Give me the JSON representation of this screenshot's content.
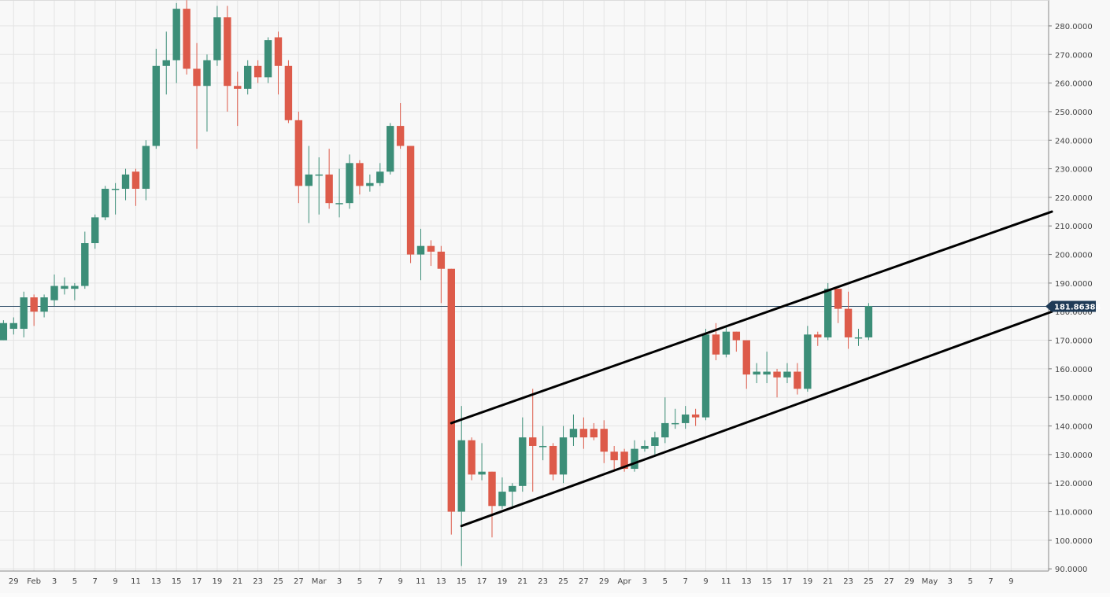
{
  "chart_data": {
    "type": "candlestick",
    "title": "",
    "xlabel": "",
    "ylabel": "",
    "ylim": [
      90,
      290
    ],
    "y_ticks": [
      "90.0000",
      "100.0000",
      "110.0000",
      "120.0000",
      "130.0000",
      "140.0000",
      "150.0000",
      "160.0000",
      "170.0000",
      "180.0000",
      "190.0000",
      "200.0000",
      "210.0000",
      "220.0000",
      "230.0000",
      "240.0000",
      "250.0000",
      "260.0000",
      "270.0000",
      "280.0000"
    ],
    "x_ticks": [
      "29",
      "Feb",
      "3",
      "5",
      "7",
      "9",
      "11",
      "13",
      "15",
      "17",
      "19",
      "21",
      "23",
      "25",
      "27",
      "Mar",
      "3",
      "5",
      "7",
      "9",
      "11",
      "13",
      "15",
      "17",
      "19",
      "21",
      "23",
      "25",
      "27",
      "29",
      "Apr",
      "3",
      "5",
      "7",
      "9",
      "11",
      "13",
      "15",
      "17",
      "19",
      "21",
      "23",
      "25",
      "27",
      "29",
      "May",
      "3",
      "5",
      "7",
      "9"
    ],
    "last_price_label": "181.86384",
    "last_price": 181.86,
    "colors": {
      "up": "#3c8e78",
      "down": "#dd5b4a",
      "grid": "#e4e4e4",
      "price_line": "#2b4a66",
      "price_badge": "#1f3b57",
      "trendline": "#000000"
    },
    "candles": [
      {
        "date": "2020-01-28",
        "open": 170,
        "high": 177,
        "low": 170,
        "close": 176
      },
      {
        "date": "2020-01-29",
        "open": 174,
        "high": 178,
        "low": 172,
        "close": 176
      },
      {
        "date": "2020-01-30",
        "open": 174,
        "high": 187,
        "low": 171,
        "close": 185
      },
      {
        "date": "2020-01-31",
        "open": 185,
        "high": 186,
        "low": 175,
        "close": 180
      },
      {
        "date": "2020-02-01",
        "open": 180,
        "high": 186,
        "low": 178,
        "close": 185
      },
      {
        "date": "2020-02-02",
        "open": 184,
        "high": 193,
        "low": 182,
        "close": 189
      },
      {
        "date": "2020-02-03",
        "open": 188,
        "high": 192,
        "low": 186,
        "close": 189
      },
      {
        "date": "2020-02-04",
        "open": 188,
        "high": 190,
        "low": 184,
        "close": 189
      },
      {
        "date": "2020-02-05",
        "open": 189,
        "high": 208,
        "low": 188,
        "close": 204
      },
      {
        "date": "2020-02-06",
        "open": 204,
        "high": 214,
        "low": 202,
        "close": 213
      },
      {
        "date": "2020-02-07",
        "open": 213,
        "high": 224,
        "low": 212,
        "close": 223
      },
      {
        "date": "2020-02-08",
        "open": 223,
        "high": 225,
        "low": 214,
        "close": 223
      },
      {
        "date": "2020-02-09",
        "open": 223,
        "high": 230,
        "low": 219,
        "close": 228
      },
      {
        "date": "2020-02-10",
        "open": 229,
        "high": 230,
        "low": 217,
        "close": 223
      },
      {
        "date": "2020-02-11",
        "open": 223,
        "high": 240,
        "low": 219,
        "close": 238
      },
      {
        "date": "2020-02-12",
        "open": 238,
        "high": 272,
        "low": 237,
        "close": 266
      },
      {
        "date": "2020-02-13",
        "open": 266,
        "high": 278,
        "low": 256,
        "close": 268
      },
      {
        "date": "2020-02-14",
        "open": 268,
        "high": 288,
        "low": 260,
        "close": 286
      },
      {
        "date": "2020-02-15",
        "open": 286,
        "high": 289,
        "low": 263,
        "close": 265
      },
      {
        "date": "2020-02-16",
        "open": 265,
        "high": 274,
        "low": 237,
        "close": 259
      },
      {
        "date": "2020-02-17",
        "open": 259,
        "high": 270,
        "low": 243,
        "close": 268
      },
      {
        "date": "2020-02-18",
        "open": 268,
        "high": 287,
        "low": 266,
        "close": 283
      },
      {
        "date": "2020-02-19",
        "open": 283,
        "high": 287,
        "low": 250,
        "close": 259
      },
      {
        "date": "2020-02-20",
        "open": 259,
        "high": 264,
        "low": 245,
        "close": 258
      },
      {
        "date": "2020-02-21",
        "open": 258,
        "high": 268,
        "low": 256,
        "close": 266
      },
      {
        "date": "2020-02-22",
        "open": 266,
        "high": 268,
        "low": 260,
        "close": 262
      },
      {
        "date": "2020-02-23",
        "open": 262,
        "high": 276,
        "low": 260,
        "close": 275
      },
      {
        "date": "2020-02-24",
        "open": 276,
        "high": 278,
        "low": 256,
        "close": 266
      },
      {
        "date": "2020-02-25",
        "open": 266,
        "high": 268,
        "low": 246,
        "close": 247
      },
      {
        "date": "2020-02-26",
        "open": 247,
        "high": 250,
        "low": 218,
        "close": 224
      },
      {
        "date": "2020-02-27",
        "open": 224,
        "high": 238,
        "low": 211,
        "close": 228
      },
      {
        "date": "2020-02-28",
        "open": 228,
        "high": 234,
        "low": 214,
        "close": 228
      },
      {
        "date": "2020-02-29",
        "open": 228,
        "high": 237,
        "low": 216,
        "close": 218
      },
      {
        "date": "2020-03-01",
        "open": 218,
        "high": 230,
        "low": 213,
        "close": 218
      },
      {
        "date": "2020-03-02",
        "open": 218,
        "high": 235,
        "low": 216,
        "close": 232
      },
      {
        "date": "2020-03-03",
        "open": 232,
        "high": 233,
        "low": 221,
        "close": 224
      },
      {
        "date": "2020-03-04",
        "open": 224,
        "high": 228,
        "low": 222,
        "close": 225
      },
      {
        "date": "2020-03-05",
        "open": 225,
        "high": 232,
        "low": 224,
        "close": 229
      },
      {
        "date": "2020-03-06",
        "open": 229,
        "high": 246,
        "low": 228,
        "close": 245
      },
      {
        "date": "2020-03-07",
        "open": 245,
        "high": 253,
        "low": 237,
        "close": 238
      },
      {
        "date": "2020-03-08",
        "open": 238,
        "high": 238,
        "low": 197,
        "close": 200
      },
      {
        "date": "2020-03-09",
        "open": 200,
        "high": 209,
        "low": 191,
        "close": 203
      },
      {
        "date": "2020-03-10",
        "open": 203,
        "high": 205,
        "low": 196,
        "close": 201
      },
      {
        "date": "2020-03-11",
        "open": 201,
        "high": 203,
        "low": 183,
        "close": 195
      },
      {
        "date": "2020-03-12",
        "open": 195,
        "high": 195,
        "low": 102,
        "close": 110
      },
      {
        "date": "2020-03-13",
        "open": 110,
        "high": 147,
        "low": 91,
        "close": 135
      },
      {
        "date": "2020-03-14",
        "open": 135,
        "high": 136,
        "low": 121,
        "close": 123
      },
      {
        "date": "2020-03-15",
        "open": 123,
        "high": 134,
        "low": 121,
        "close": 124
      },
      {
        "date": "2020-03-16",
        "open": 124,
        "high": 124,
        "low": 101,
        "close": 112
      },
      {
        "date": "2020-03-17",
        "open": 112,
        "high": 122,
        "low": 111,
        "close": 117
      },
      {
        "date": "2020-03-18",
        "open": 117,
        "high": 120,
        "low": 111,
        "close": 119
      },
      {
        "date": "2020-03-19",
        "open": 119,
        "high": 143,
        "low": 117,
        "close": 136
      },
      {
        "date": "2020-03-20",
        "open": 136,
        "high": 153,
        "low": 117,
        "close": 133
      },
      {
        "date": "2020-03-21",
        "open": 133,
        "high": 140,
        "low": 128,
        "close": 133
      },
      {
        "date": "2020-03-22",
        "open": 133,
        "high": 134,
        "low": 121,
        "close": 123
      },
      {
        "date": "2020-03-23",
        "open": 123,
        "high": 140,
        "low": 120,
        "close": 136
      },
      {
        "date": "2020-03-24",
        "open": 136,
        "high": 144,
        "low": 133,
        "close": 139
      },
      {
        "date": "2020-03-25",
        "open": 139,
        "high": 143,
        "low": 132,
        "close": 136
      },
      {
        "date": "2020-03-26",
        "open": 139,
        "high": 141,
        "low": 135,
        "close": 136
      },
      {
        "date": "2020-03-27",
        "open": 139,
        "high": 142,
        "low": 127,
        "close": 131
      },
      {
        "date": "2020-03-28",
        "open": 131,
        "high": 133,
        "low": 124,
        "close": 128
      },
      {
        "date": "2020-03-29",
        "open": 131,
        "high": 132,
        "low": 124,
        "close": 125
      },
      {
        "date": "2020-03-30",
        "open": 125,
        "high": 135,
        "low": 124,
        "close": 132
      },
      {
        "date": "2020-03-31",
        "open": 132,
        "high": 135,
        "low": 131,
        "close": 133
      },
      {
        "date": "2020-04-01",
        "open": 133,
        "high": 138,
        "low": 130,
        "close": 136
      },
      {
        "date": "2020-04-02",
        "open": 136,
        "high": 150,
        "low": 134,
        "close": 141
      },
      {
        "date": "2020-04-03",
        "open": 141,
        "high": 146,
        "low": 139,
        "close": 141
      },
      {
        "date": "2020-04-04",
        "open": 141,
        "high": 147,
        "low": 139,
        "close": 144
      },
      {
        "date": "2020-04-05",
        "open": 144,
        "high": 146,
        "low": 140,
        "close": 143
      },
      {
        "date": "2020-04-06",
        "open": 143,
        "high": 174,
        "low": 142,
        "close": 172
      },
      {
        "date": "2020-04-07",
        "open": 172,
        "high": 176,
        "low": 163,
        "close": 165
      },
      {
        "date": "2020-04-08",
        "open": 165,
        "high": 175,
        "low": 164,
        "close": 173
      },
      {
        "date": "2020-04-09",
        "open": 173,
        "high": 173,
        "low": 166,
        "close": 170
      },
      {
        "date": "2020-04-10",
        "open": 170,
        "high": 170,
        "low": 153,
        "close": 158
      },
      {
        "date": "2020-04-11",
        "open": 158,
        "high": 162,
        "low": 155,
        "close": 159
      },
      {
        "date": "2020-04-12",
        "open": 158,
        "high": 166,
        "low": 155,
        "close": 159
      },
      {
        "date": "2020-04-13",
        "open": 159,
        "high": 160,
        "low": 150,
        "close": 157
      },
      {
        "date": "2020-04-14",
        "open": 157,
        "high": 162,
        "low": 155,
        "close": 159
      },
      {
        "date": "2020-04-15",
        "open": 159,
        "high": 162,
        "low": 151,
        "close": 153
      },
      {
        "date": "2020-04-16",
        "open": 153,
        "high": 175,
        "low": 152,
        "close": 172
      },
      {
        "date": "2020-04-17",
        "open": 172,
        "high": 173,
        "low": 168,
        "close": 171
      },
      {
        "date": "2020-04-18",
        "open": 171,
        "high": 190,
        "low": 170,
        "close": 188
      },
      {
        "date": "2020-04-19",
        "open": 188,
        "high": 188,
        "low": 176,
        "close": 181
      },
      {
        "date": "2020-04-20",
        "open": 181,
        "high": 187,
        "low": 167,
        "close": 171
      },
      {
        "date": "2020-04-21",
        "open": 171,
        "high": 174,
        "low": 168,
        "close": 171
      },
      {
        "date": "2020-04-22",
        "open": 171,
        "high": 183,
        "low": 170,
        "close": 182
      }
    ],
    "trendlines": [
      {
        "name": "upper-channel",
        "start": {
          "date": "2020-03-12",
          "value": 141
        },
        "end": {
          "date": "2020-05-10",
          "value": 215
        }
      },
      {
        "name": "lower-channel",
        "start": {
          "date": "2020-03-13",
          "value": 105
        },
        "end": {
          "date": "2020-05-10",
          "value": 180
        }
      }
    ]
  }
}
